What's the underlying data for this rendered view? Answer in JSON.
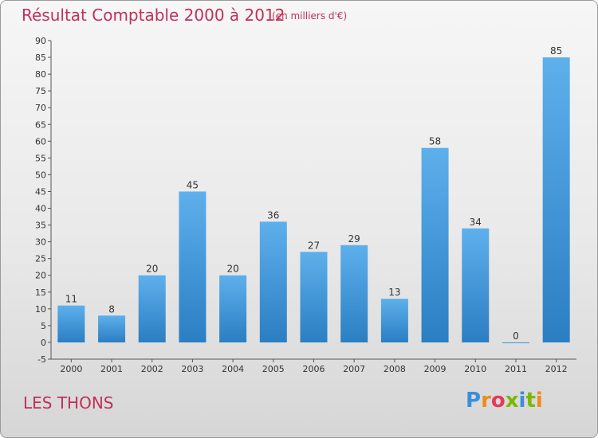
{
  "header": {
    "title": "Résultat Comptable 2000 à 2012",
    "subtitle": "(en milliers d'€)"
  },
  "footer": {
    "commune": "LES THONS",
    "logo_letters": [
      "P",
      "r",
      "o",
      "x",
      "i",
      "t",
      "i"
    ],
    "logo_text": "Proxiti"
  },
  "colors": {
    "bar": "#3d95d9",
    "title": "#c0305a"
  },
  "chart_data": {
    "type": "bar",
    "title": "Résultat Comptable 2000 à 2012",
    "subtitle": "(en milliers d'€)",
    "xlabel": "",
    "ylabel": "",
    "categories": [
      "2000",
      "2001",
      "2002",
      "2003",
      "2004",
      "2005",
      "2006",
      "2007",
      "2008",
      "2009",
      "2010",
      "2011",
      "2012"
    ],
    "values": [
      11,
      8,
      20,
      45,
      20,
      36,
      27,
      29,
      13,
      58,
      34,
      0,
      85
    ],
    "data_labels": [
      "11",
      "8",
      "20",
      "45",
      "20",
      "36",
      "27",
      "29",
      "13",
      "58",
      "34",
      "0",
      "85"
    ],
    "ylim": [
      -5,
      90
    ],
    "yticks": [
      -5,
      0,
      5,
      10,
      15,
      20,
      25,
      30,
      35,
      40,
      45,
      50,
      55,
      60,
      65,
      70,
      75,
      80,
      85,
      90
    ],
    "grid": false,
    "legend": "none"
  }
}
